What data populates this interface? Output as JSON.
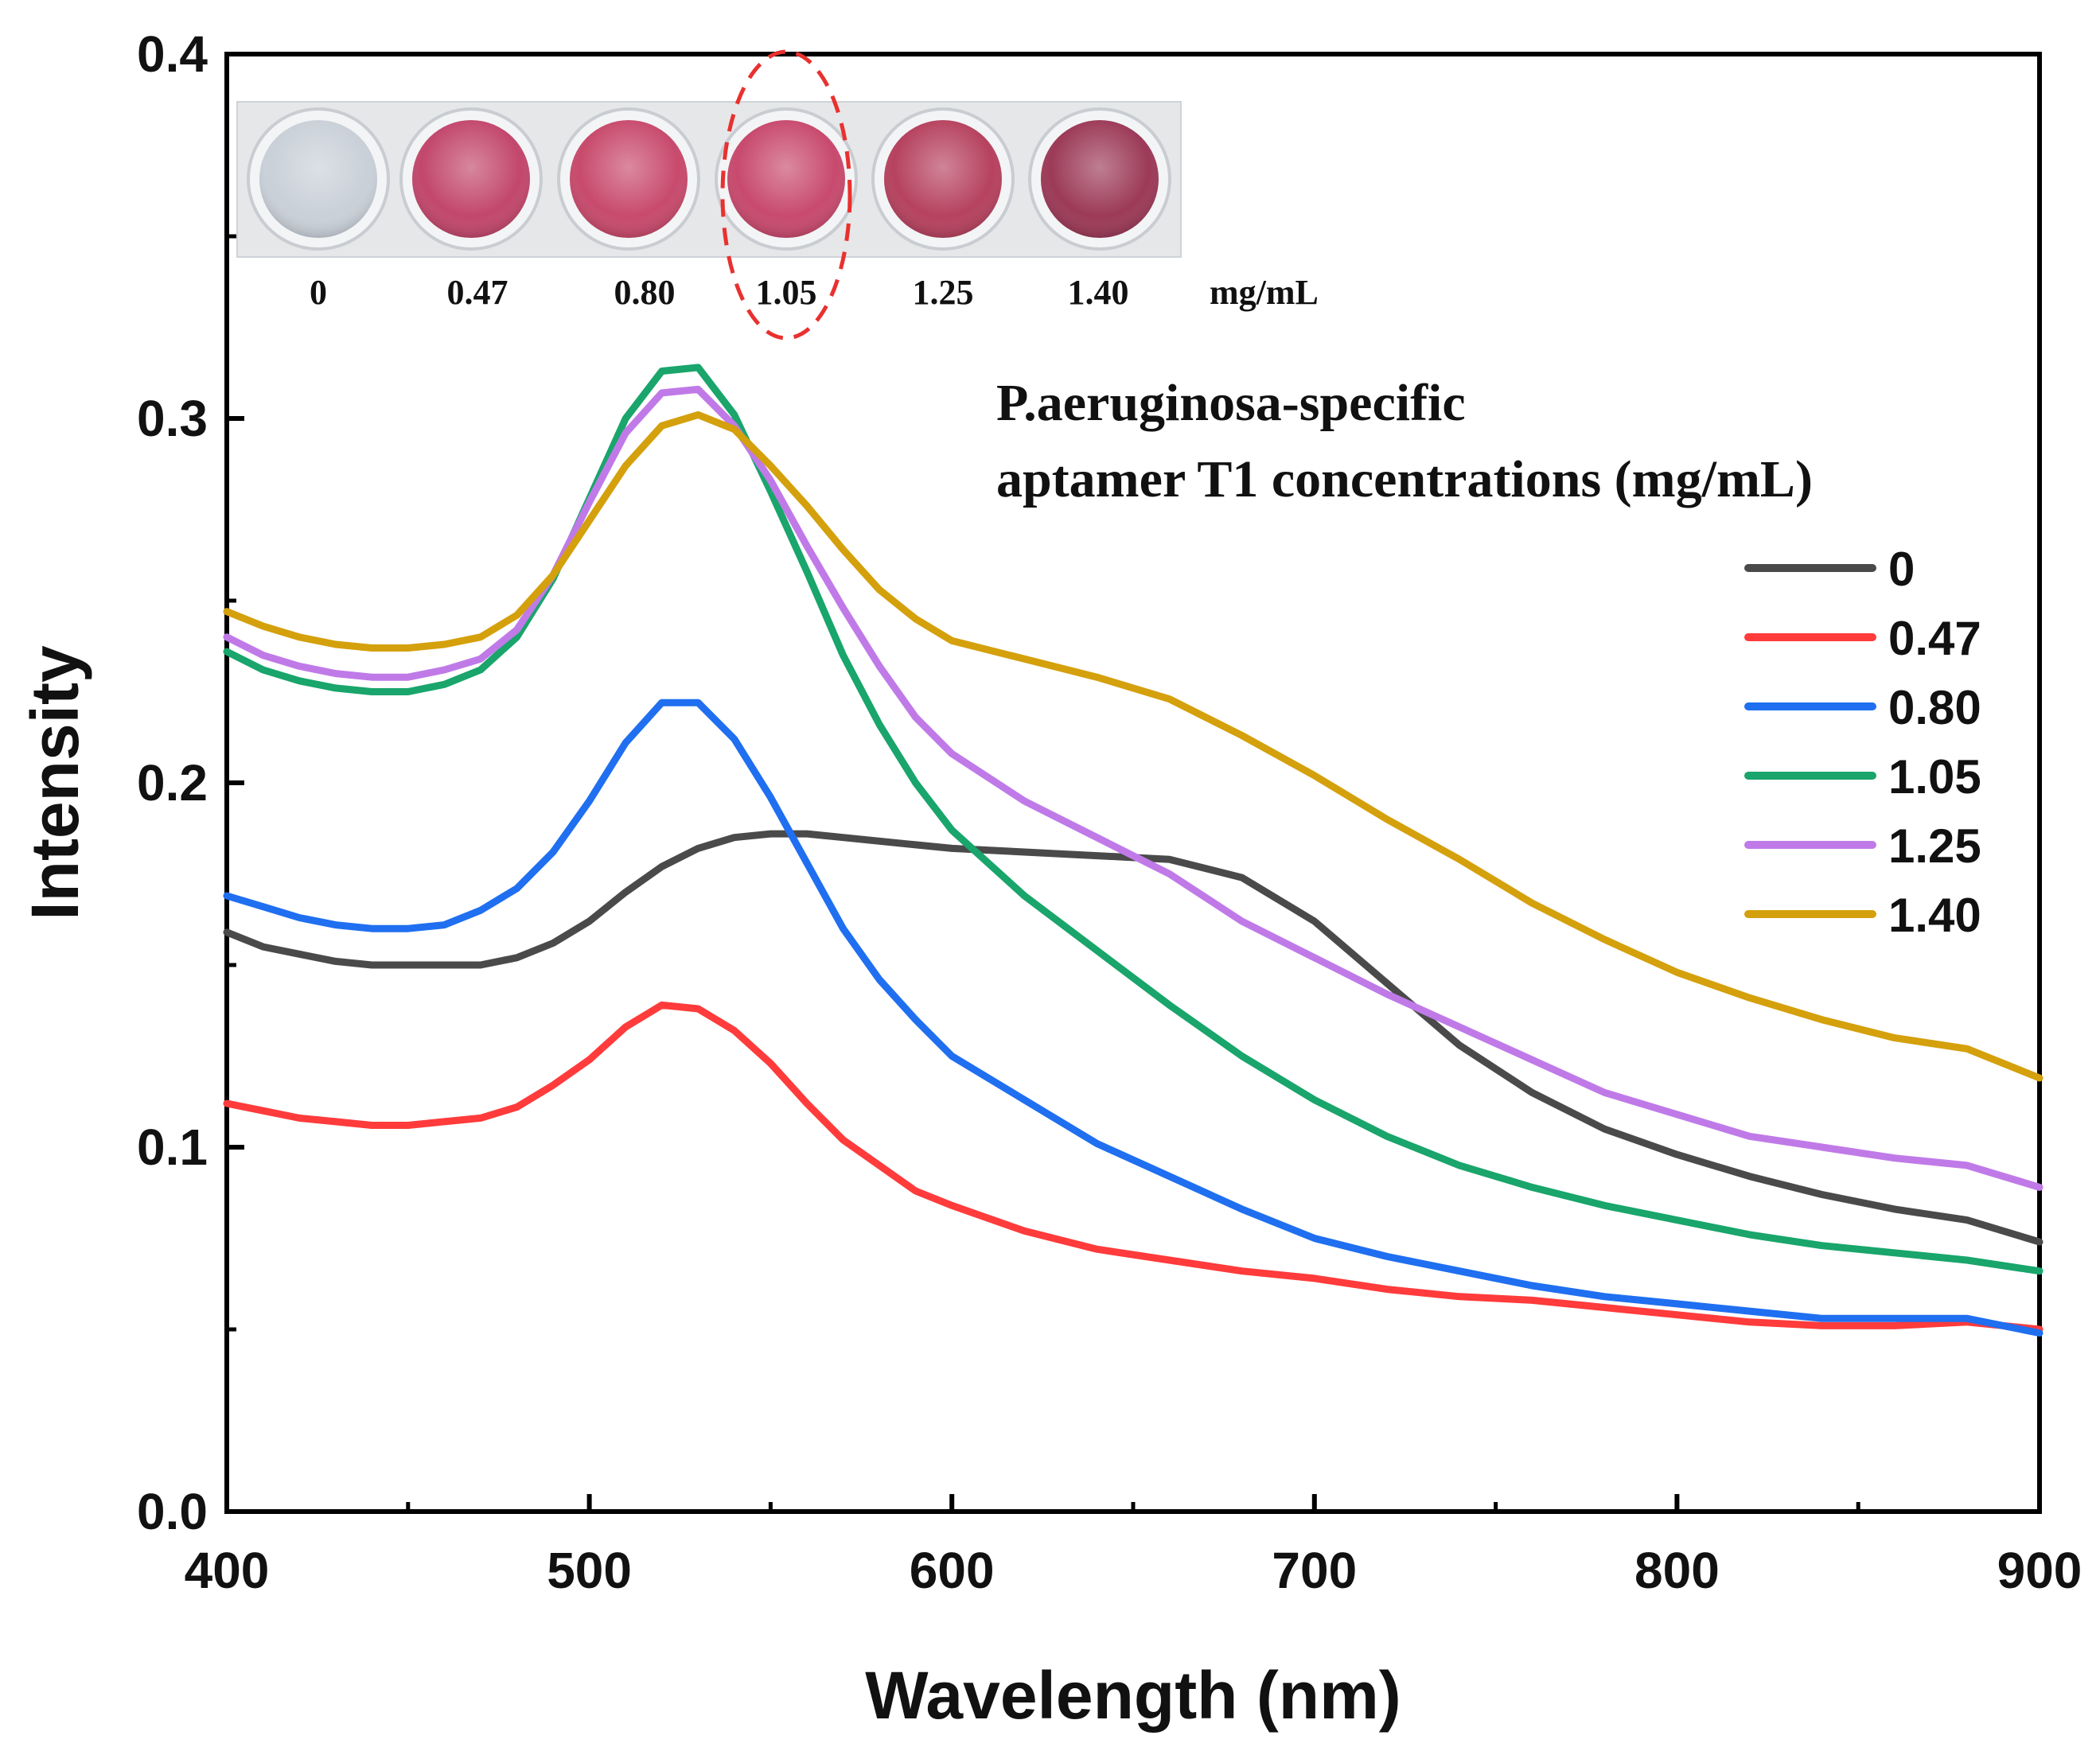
{
  "chart_data": {
    "type": "line",
    "title": "",
    "xlabel": "Wavelength (nm)",
    "ylabel": "Intensity",
    "xlim": [
      400,
      900
    ],
    "ylim": [
      0.0,
      0.4
    ],
    "x_ticks": [
      400,
      500,
      600,
      700,
      800,
      900
    ],
    "x_tick_labels": [
      "400",
      "500",
      "600",
      "700",
      "800",
      "900"
    ],
    "y_ticks": [
      0.0,
      0.1,
      0.2,
      0.3,
      0.4
    ],
    "y_tick_labels": [
      "0.0",
      "0.1",
      "0.2",
      "0.3",
      "0.4"
    ],
    "grid": false,
    "legend": {
      "position": "right",
      "title_lines": [
        "P.aeruginosa-specific",
        "aptamer T1 concentrations (mg/mL)"
      ]
    },
    "x": [
      400,
      410,
      420,
      430,
      440,
      450,
      460,
      470,
      480,
      490,
      500,
      510,
      520,
      530,
      540,
      550,
      560,
      570,
      580,
      590,
      600,
      620,
      640,
      660,
      680,
      700,
      720,
      740,
      760,
      780,
      800,
      820,
      840,
      860,
      880,
      900
    ],
    "series": [
      {
        "name": "0",
        "color": "#4a4a4a",
        "values": [
          0.159,
          0.155,
          0.153,
          0.151,
          0.15,
          0.15,
          0.15,
          0.15,
          0.152,
          0.156,
          0.162,
          0.17,
          0.177,
          0.182,
          0.185,
          0.186,
          0.186,
          0.185,
          0.184,
          0.183,
          0.182,
          0.181,
          0.18,
          0.179,
          0.174,
          0.162,
          0.145,
          0.128,
          0.115,
          0.105,
          0.098,
          0.092,
          0.087,
          0.083,
          0.08,
          0.074
        ]
      },
      {
        "name": "0.47",
        "color": "#ff3b3b",
        "values": [
          0.112,
          0.11,
          0.108,
          0.107,
          0.106,
          0.106,
          0.107,
          0.108,
          0.111,
          0.117,
          0.124,
          0.133,
          0.139,
          0.138,
          0.132,
          0.123,
          0.112,
          0.102,
          0.095,
          0.088,
          0.084,
          0.077,
          0.072,
          0.069,
          0.066,
          0.064,
          0.061,
          0.059,
          0.058,
          0.056,
          0.054,
          0.052,
          0.051,
          0.051,
          0.052,
          0.05
        ]
      },
      {
        "name": "0.80",
        "color": "#1f6ff0",
        "values": [
          0.169,
          0.166,
          0.163,
          0.161,
          0.16,
          0.16,
          0.161,
          0.165,
          0.171,
          0.181,
          0.195,
          0.211,
          0.222,
          0.222,
          0.212,
          0.196,
          0.178,
          0.16,
          0.146,
          0.135,
          0.125,
          0.113,
          0.101,
          0.092,
          0.083,
          0.075,
          0.07,
          0.066,
          0.062,
          0.059,
          0.057,
          0.055,
          0.053,
          0.053,
          0.053,
          0.049
        ]
      },
      {
        "name": "1.05",
        "color": "#19a56b",
        "values": [
          0.236,
          0.231,
          0.228,
          0.226,
          0.225,
          0.225,
          0.227,
          0.231,
          0.24,
          0.256,
          0.278,
          0.3,
          0.313,
          0.314,
          0.301,
          0.28,
          0.258,
          0.235,
          0.216,
          0.2,
          0.187,
          0.169,
          0.154,
          0.139,
          0.125,
          0.113,
          0.103,
          0.095,
          0.089,
          0.084,
          0.08,
          0.076,
          0.073,
          0.071,
          0.069,
          0.066
        ]
      },
      {
        "name": "1.25",
        "color": "#c07ae8",
        "values": [
          0.24,
          0.235,
          0.232,
          0.23,
          0.229,
          0.229,
          0.231,
          0.234,
          0.242,
          0.257,
          0.277,
          0.296,
          0.307,
          0.308,
          0.298,
          0.283,
          0.265,
          0.248,
          0.232,
          0.218,
          0.208,
          0.195,
          0.185,
          0.175,
          0.162,
          0.152,
          0.142,
          0.133,
          0.124,
          0.115,
          0.109,
          0.103,
          0.1,
          0.097,
          0.095,
          0.089
        ]
      },
      {
        "name": "1.40",
        "color": "#d4a00c",
        "values": [
          0.247,
          0.243,
          0.24,
          0.238,
          0.237,
          0.237,
          0.238,
          0.24,
          0.246,
          0.257,
          0.272,
          0.287,
          0.298,
          0.301,
          0.297,
          0.287,
          0.276,
          0.264,
          0.253,
          0.245,
          0.239,
          0.234,
          0.229,
          0.223,
          0.213,
          0.202,
          0.19,
          0.179,
          0.167,
          0.157,
          0.148,
          0.141,
          0.135,
          0.13,
          0.127,
          0.119
        ]
      }
    ],
    "inset": {
      "description": "photo of microplate wells",
      "labels": [
        "0",
        "0.47",
        "0.80",
        "1.05",
        "1.25",
        "1.40",
        "mg/mL"
      ],
      "well_colors": [
        "#c9d0d8",
        "#c2476c",
        "#c84a6c",
        "#c84a6e",
        "#b6425f",
        "#9c3a58"
      ],
      "highlight_index": 3,
      "highlight_color": "#e8312f"
    }
  }
}
